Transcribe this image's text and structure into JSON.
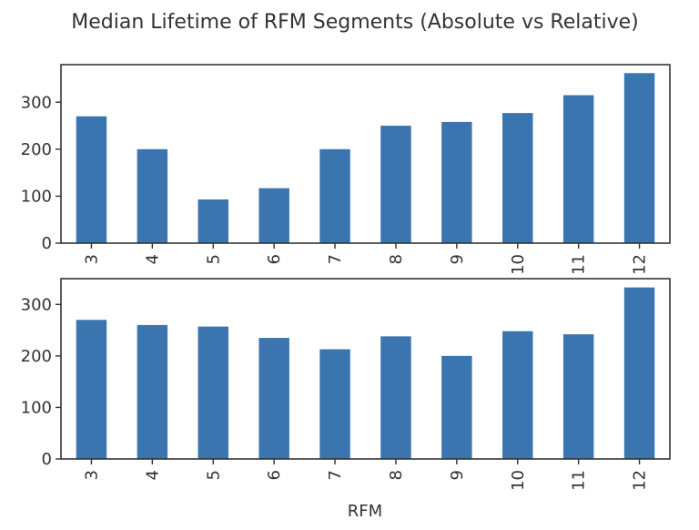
{
  "figure": {
    "title": "Median Lifetime of RFM Segments (Absolute vs Relative)"
  },
  "colors": {
    "bar": "#3a75af",
    "axes": "#333333",
    "background": "#ffffff"
  },
  "chart_data": [
    {
      "type": "bar",
      "title": "",
      "categories": [
        "3",
        "4",
        "5",
        "6",
        "7",
        "8",
        "9",
        "10",
        "11",
        "12"
      ],
      "values": [
        270,
        200,
        93,
        117,
        200,
        250,
        258,
        277,
        315,
        362
      ],
      "yticks": [
        "0",
        "100",
        "200",
        "300"
      ],
      "ylim": [
        0,
        380
      ],
      "xlabel": "",
      "ylabel": "",
      "grid": false,
      "legend": "none"
    },
    {
      "type": "bar",
      "title": "",
      "categories": [
        "3",
        "4",
        "5",
        "6",
        "7",
        "8",
        "9",
        "10",
        "11",
        "12"
      ],
      "values": [
        270,
        260,
        257,
        235,
        213,
        238,
        200,
        248,
        242,
        333
      ],
      "yticks": [
        "0",
        "100",
        "200",
        "300"
      ],
      "ylim": [
        0,
        350
      ],
      "xlabel": "RFM",
      "ylabel": "",
      "grid": false,
      "legend": "none"
    }
  ]
}
